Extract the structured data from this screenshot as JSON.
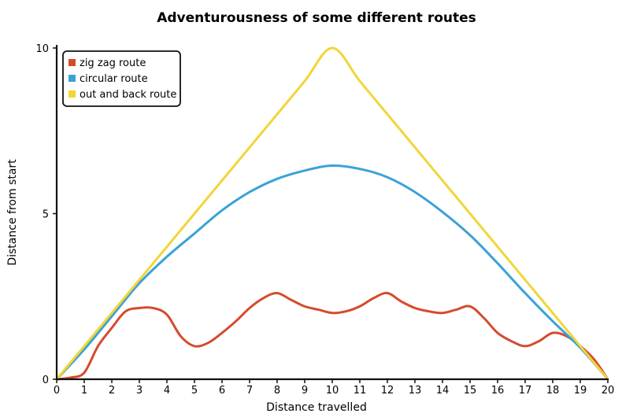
{
  "chart_data": {
    "type": "line",
    "title": "Adventurousness of some different routes",
    "xlabel": "Distance travelled",
    "ylabel": "Distance from start",
    "xlim": [
      0,
      20
    ],
    "ylim": [
      0,
      10
    ],
    "x_ticks": [
      0,
      1,
      2,
      3,
      4,
      5,
      6,
      7,
      8,
      9,
      10,
      11,
      12,
      13,
      14,
      15,
      16,
      17,
      18,
      19,
      20
    ],
    "y_ticks": [
      0,
      5,
      10
    ],
    "grid": false,
    "legend_position": "top-left",
    "series": [
      {
        "name": "zig zag route",
        "color": "#d64a2c",
        "x": [
          0,
          0.5,
          1,
          1.5,
          2,
          2.5,
          3,
          3.5,
          4,
          4.5,
          5,
          5.5,
          6,
          6.5,
          7,
          7.5,
          8,
          8.5,
          9,
          9.5,
          10,
          10.5,
          11,
          11.5,
          12,
          12.5,
          13,
          13.5,
          14,
          14.5,
          15,
          15.5,
          16,
          16.5,
          17,
          17.5,
          18,
          18.5,
          19,
          19.5,
          20
        ],
        "values": [
          0,
          0.05,
          0.2,
          1.0,
          1.55,
          2.05,
          2.15,
          2.15,
          1.95,
          1.3,
          1.0,
          1.1,
          1.4,
          1.75,
          2.15,
          2.45,
          2.6,
          2.4,
          2.2,
          2.1,
          2.0,
          2.05,
          2.2,
          2.45,
          2.6,
          2.35,
          2.15,
          2.05,
          2.0,
          2.1,
          2.2,
          1.85,
          1.4,
          1.15,
          1.0,
          1.15,
          1.4,
          1.3,
          1.0,
          0.6,
          0
        ]
      },
      {
        "name": "circular route",
        "color": "#3aa2d8",
        "x": [
          0,
          1,
          2,
          3,
          4,
          5,
          6,
          7,
          8,
          9,
          10,
          11,
          12,
          13,
          14,
          15,
          16,
          17,
          18,
          19,
          20
        ],
        "values": [
          0,
          0.9,
          1.9,
          2.9,
          3.7,
          4.4,
          5.1,
          5.65,
          6.05,
          6.3,
          6.45,
          6.35,
          6.1,
          5.65,
          5.05,
          4.35,
          3.5,
          2.6,
          1.75,
          0.95,
          0
        ]
      },
      {
        "name": "out and back route",
        "color": "#f2d538",
        "x": [
          0,
          1,
          2,
          3,
          4,
          5,
          6,
          7,
          8,
          9,
          10,
          11,
          12,
          13,
          14,
          15,
          16,
          17,
          18,
          19,
          20
        ],
        "values": [
          0,
          1,
          2,
          3,
          4,
          5,
          6,
          7,
          8,
          9,
          10,
          9,
          8,
          7,
          6,
          5,
          4,
          3,
          2,
          1,
          0
        ]
      }
    ]
  }
}
